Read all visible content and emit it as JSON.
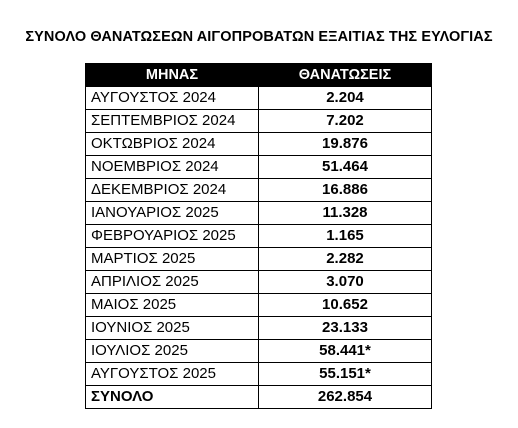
{
  "header": {
    "title": "ΣΥΝΟΛΟ ΘΑΝΑΤΩΣΕΩΝ ΑΙΓΟΠΡΟΒΑΤΩΝ ΕΞΑΙΤΙΑΣ ΤΗΣ ΕΥΛΟΓΙΑΣ"
  },
  "table": {
    "columns": [
      "ΜΗΝΑΣ",
      "ΘΑΝΑΤΩΣΕΙΣ"
    ],
    "rows": [
      [
        "ΑΥΓΟΥΣΤΟΣ 2024",
        "2.204"
      ],
      [
        "ΣΕΠΤΕΜΒΡΙΟΣ 2024",
        "7.202"
      ],
      [
        "ΟΚΤΩΒΡΙΟΣ 2024",
        "19.876"
      ],
      [
        "ΝΟΕΜΒΡΙΟΣ 2024",
        "51.464"
      ],
      [
        "ΔΕΚΕΜΒΡΙΟΣ 2024",
        "16.886"
      ],
      [
        "ΙΑΝΟΥΑΡΙΟΣ 2025",
        "11.328"
      ],
      [
        "ΦΕΒΡΟΥΑΡΙΟΣ 2025",
        "1.165"
      ],
      [
        "ΜΑΡΤΙΟΣ 2025",
        "2.282"
      ],
      [
        "ΑΠΡΙΛΙΟΣ 2025",
        "3.070"
      ],
      [
        "ΜΑΙΟΣ 2025",
        "10.652"
      ],
      [
        "ΙΟΥΝΙΟΣ 2025",
        "23.133"
      ],
      [
        "ΙΟΥΛΙΟΣ 2025",
        "58.441*"
      ],
      [
        "ΑΥΓΟΥΣΤΟΣ 2025",
        "55.151*"
      ]
    ],
    "total": [
      "ΣΥΝΟΛΟ",
      "262.854"
    ]
  }
}
